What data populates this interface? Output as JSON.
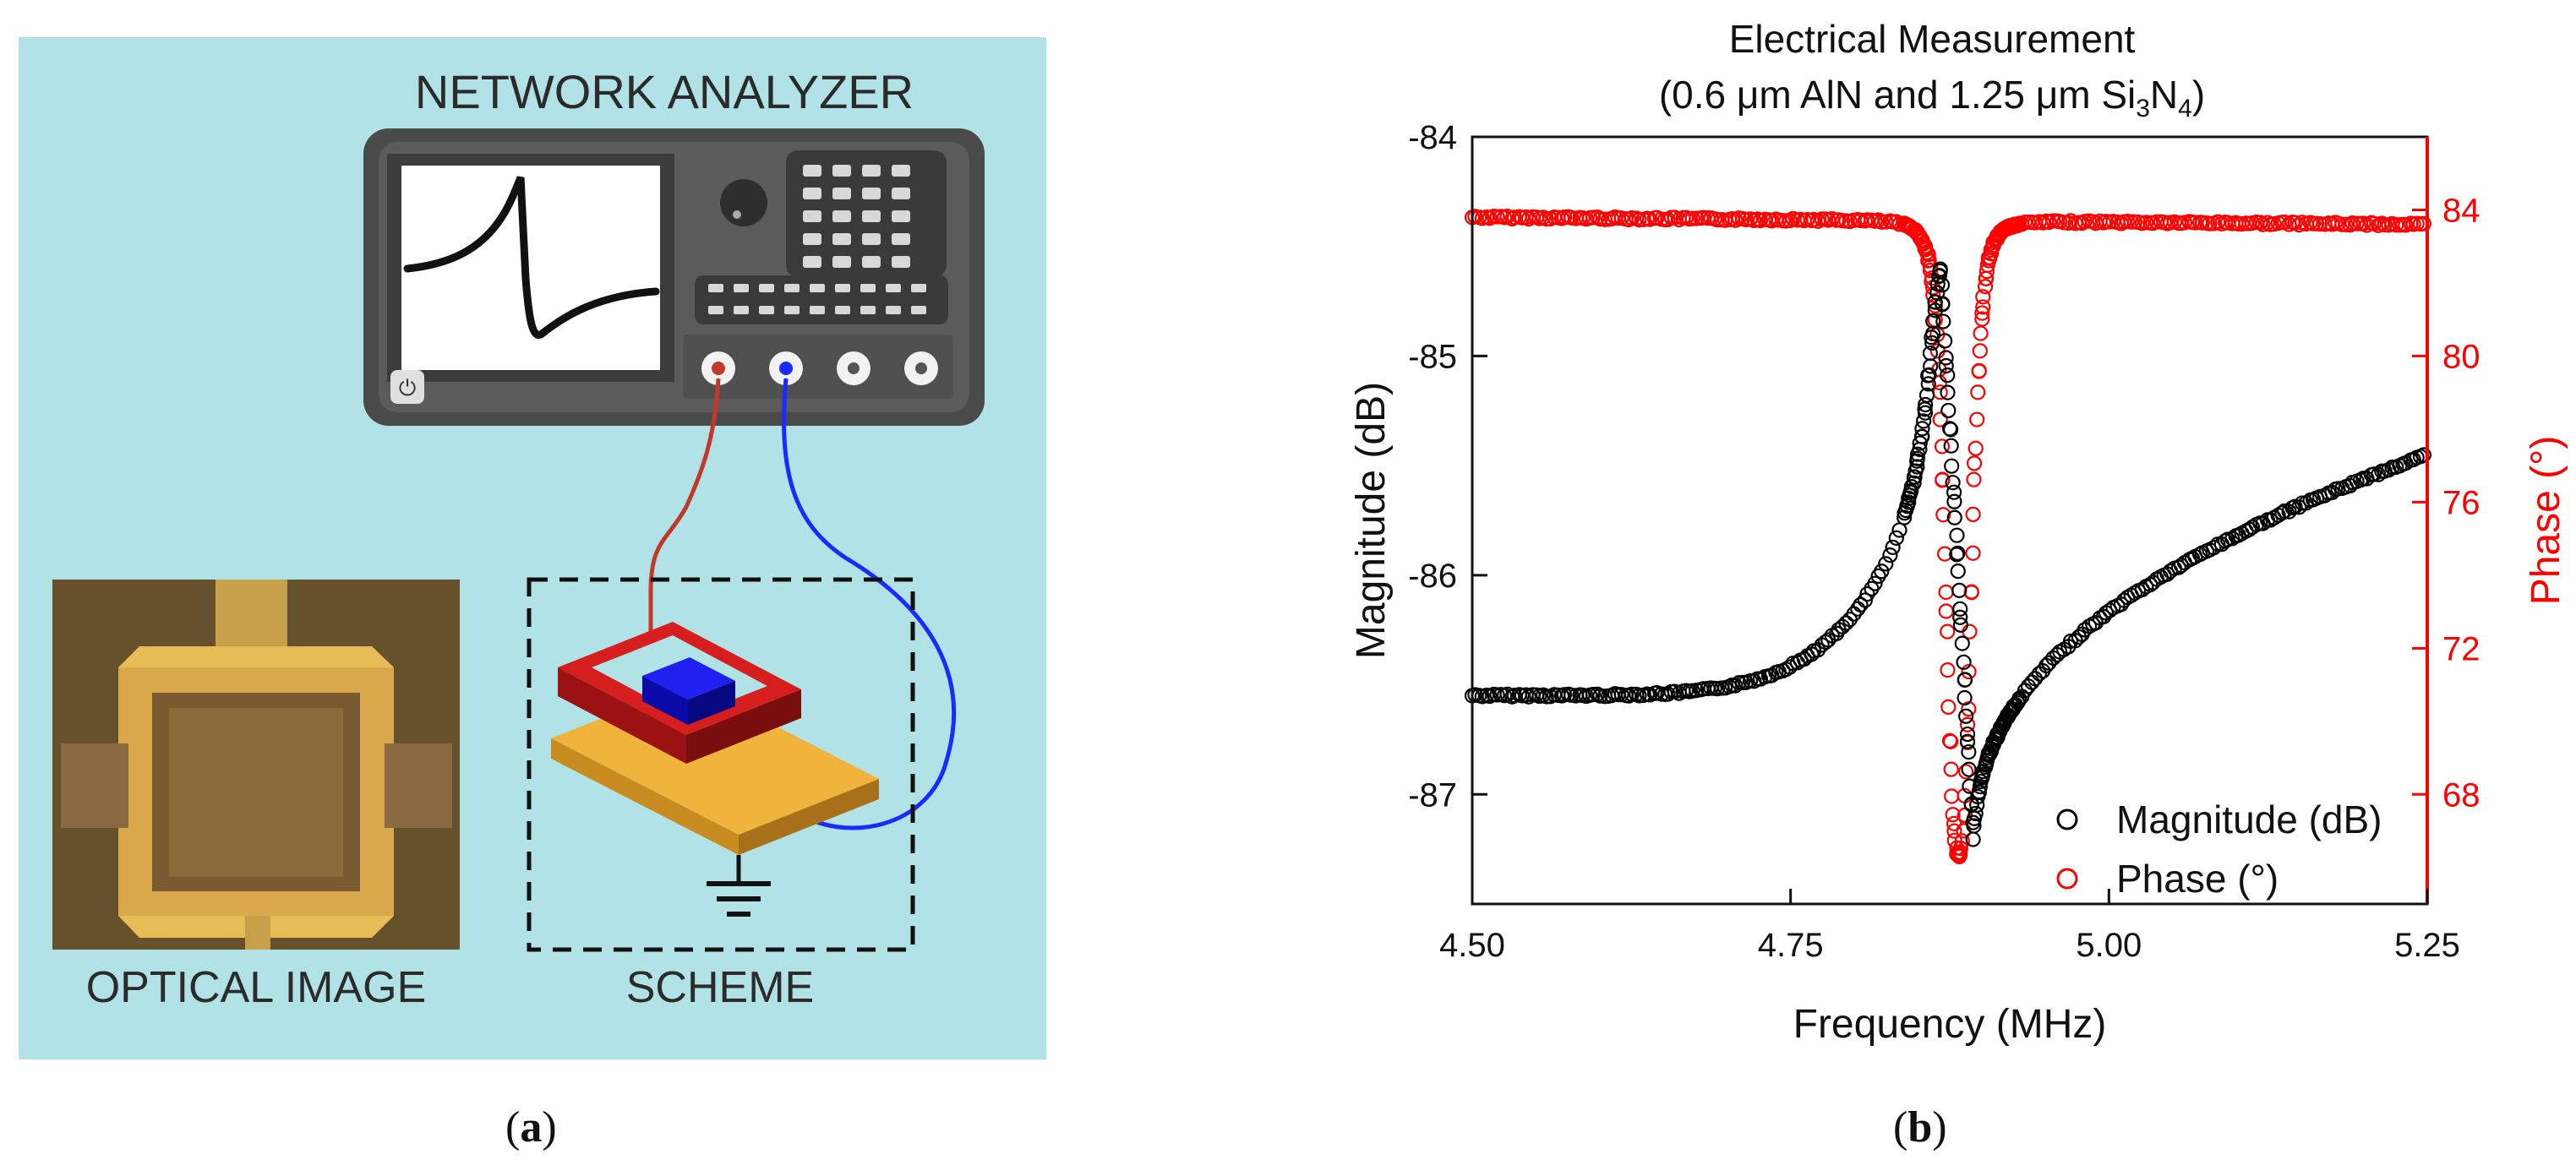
{
  "panel_a": {
    "instrument_title": "NETWORK ANALYZER",
    "optical_caption": "OPTICAL IMAGE",
    "scheme_caption": "SCHEME",
    "background_color": "#b1e2e6",
    "wire_colors": {
      "red": "#c0392b",
      "blue": "#1a2bff"
    },
    "electrode_colors": {
      "top": "#d61e1e",
      "resonator": "#1010d0",
      "bottom": "#f0b43c"
    },
    "label": "a"
  },
  "panel_b": {
    "label": "b",
    "chart_data": {
      "type": "scatter",
      "title": "Electrical Measurement",
      "subtitle_parts": {
        "pre": "(0.6 ",
        "mu1": "μ",
        "mid": "m AlN and 1.25 ",
        "mu2": "μ",
        "m2": "m Si",
        "sub3": "3",
        "n": "N",
        "sub4": "4",
        "close": ")"
      },
      "xlabel": "Frequency (MHz)",
      "ylabel_left": "Magnitude (dB)",
      "ylabel_right": "Phase (°)",
      "xlim": [
        4.5,
        5.25
      ],
      "ylim_left": [
        -87.5,
        -84
      ],
      "ylim_right": [
        65,
        86
      ],
      "x_ticks": [
        "4.50",
        "4.75",
        "5.00",
        "5.25"
      ],
      "x_tick_values": [
        4.5,
        4.75,
        5.0,
        5.25
      ],
      "y_left_ticks": [
        "-84",
        "-85",
        "-86",
        "-87"
      ],
      "y_left_tick_values": [
        -84,
        -85,
        -86,
        -87
      ],
      "y_right_ticks": [
        "84",
        "80",
        "76",
        "72",
        "68"
      ],
      "y_right_tick_values": [
        84,
        80,
        76,
        72,
        68
      ],
      "series": [
        {
          "name": "Magnitude (dB)",
          "axis": "left",
          "color": "#000000",
          "baseline": -86.55,
          "slope": 2.14,
          "resonance": 4.868,
          "peak": -84.6,
          "antiresonance": 4.894,
          "dip": -87.25,
          "final": -85.45
        },
        {
          "name": "Phase (°)",
          "axis": "right",
          "color": "#ff0000",
          "baseline": 83.8,
          "final": 83.6,
          "center": 4.882,
          "min": 66.3,
          "width": 0.012
        }
      ],
      "legend": "bottom-right"
    }
  }
}
